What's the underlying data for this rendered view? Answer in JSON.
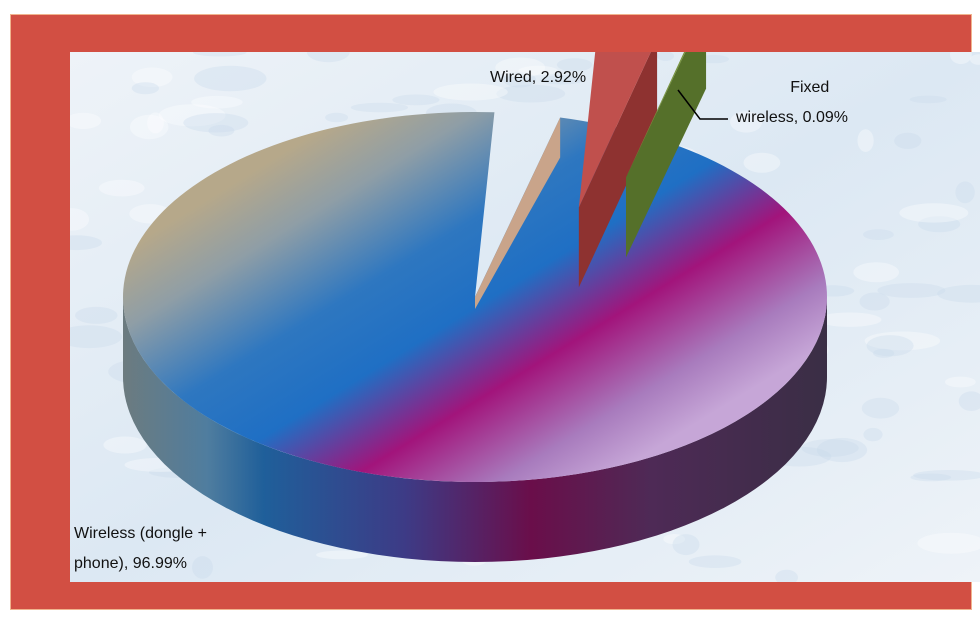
{
  "chart_data": {
    "type": "pie",
    "title": "",
    "slices": [
      {
        "name": "Wireless (dongle + phone)",
        "value": 96.99,
        "label_lines": [
          "Wireless (dongle +",
          "phone), 96.99%"
        ],
        "color": "#7b4a92"
      },
      {
        "name": "Wired",
        "value": 2.92,
        "label_lines": [
          "Wired, 2.92%"
        ],
        "color": "#c0504d"
      },
      {
        "name": "Fixed wireless",
        "value": 0.09,
        "label_lines": [
          "Fixed",
          "wireless, 0.09%"
        ],
        "color": "#77933c"
      }
    ],
    "style": "3d-exploded",
    "legend": "none"
  },
  "colors": {
    "frame": "#d24f43",
    "plot_background": "#e8eef5"
  }
}
